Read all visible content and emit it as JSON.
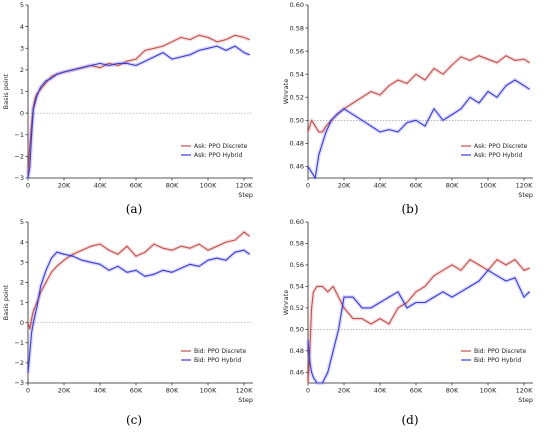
{
  "colors": {
    "discrete": "#c0504d",
    "hybrid": "#3b3bd6",
    "baseline": "#8a8a8a"
  },
  "chart_data": [
    {
      "type": "line",
      "caption": "(a)",
      "xlabel": "Step",
      "ylabel": "Basis point",
      "xlim": [
        0,
        125000
      ],
      "ylim": [
        -3,
        5
      ],
      "xticks": [
        0,
        20000,
        40000,
        60000,
        80000,
        100000,
        120000
      ],
      "xtick_labels": [
        "0",
        "20K",
        "40K",
        "60K",
        "80K",
        "100K",
        "120K"
      ],
      "yticks": [
        -3,
        -2,
        -1,
        0,
        1,
        2,
        3,
        4,
        5
      ],
      "ytick_labels": [
        "−3",
        "−2",
        "−1",
        "0",
        "1",
        "2",
        "3",
        "4",
        "5"
      ],
      "baseline": 0,
      "legend": "bottom-right",
      "series": [
        {
          "name": "Ask: PPO Discrete",
          "key": "discrete",
          "x": [
            0,
            1000,
            2000,
            3000,
            4000,
            5000,
            7000,
            10000,
            13000,
            16000,
            20000,
            25000,
            30000,
            35000,
            40000,
            45000,
            50000,
            55000,
            60000,
            65000,
            70000,
            75000,
            80000,
            85000,
            90000,
            95000,
            100000,
            105000,
            110000,
            115000,
            120000,
            123000
          ],
          "y": [
            -2.8,
            -1.5,
            -0.5,
            0.3,
            0.7,
            0.9,
            1.1,
            1.4,
            1.7,
            1.8,
            1.9,
            2.0,
            2.1,
            2.2,
            2.1,
            2.3,
            2.2,
            2.4,
            2.5,
            2.9,
            3.0,
            3.1,
            3.3,
            3.5,
            3.4,
            3.6,
            3.5,
            3.3,
            3.4,
            3.6,
            3.5,
            3.4
          ]
        },
        {
          "name": "Ask: PPO Hybrid",
          "key": "hybrid",
          "x": [
            0,
            1000,
            2000,
            3000,
            4000,
            5000,
            7000,
            10000,
            13000,
            16000,
            20000,
            25000,
            30000,
            35000,
            40000,
            45000,
            50000,
            55000,
            60000,
            65000,
            70000,
            75000,
            80000,
            85000,
            90000,
            95000,
            100000,
            105000,
            110000,
            115000,
            120000,
            123000
          ],
          "y": [
            -3.0,
            -2.5,
            -1.0,
            0.2,
            0.5,
            0.8,
            1.2,
            1.5,
            1.6,
            1.8,
            1.9,
            2.0,
            2.1,
            2.2,
            2.3,
            2.2,
            2.3,
            2.3,
            2.2,
            2.4,
            2.6,
            2.8,
            2.5,
            2.6,
            2.7,
            2.9,
            3.0,
            3.1,
            2.9,
            3.1,
            2.8,
            2.7
          ]
        }
      ]
    },
    {
      "type": "line",
      "caption": "(b)",
      "xlabel": "Step",
      "ylabel": "Winrate",
      "xlim": [
        0,
        125000
      ],
      "ylim": [
        0.45,
        0.6
      ],
      "xticks": [
        0,
        20000,
        40000,
        60000,
        80000,
        100000,
        120000
      ],
      "xtick_labels": [
        "0",
        "20K",
        "40K",
        "60K",
        "80K",
        "100K",
        "120K"
      ],
      "yticks": [
        0.46,
        0.48,
        0.5,
        0.52,
        0.54,
        0.56,
        0.58,
        0.6
      ],
      "ytick_labels": [
        "0.46",
        "0.48",
        "0.50",
        "0.52",
        "0.54",
        "0.56",
        "0.58",
        "0.60"
      ],
      "baseline": 0.5,
      "legend": "bottom-right",
      "series": [
        {
          "name": "Ask: PPO Discrete",
          "key": "discrete",
          "x": [
            0,
            2000,
            4000,
            6000,
            8000,
            10000,
            13000,
            16000,
            20000,
            25000,
            30000,
            35000,
            40000,
            45000,
            50000,
            55000,
            60000,
            65000,
            70000,
            75000,
            80000,
            85000,
            90000,
            95000,
            100000,
            105000,
            110000,
            115000,
            120000,
            123000
          ],
          "y": [
            0.49,
            0.5,
            0.495,
            0.49,
            0.49,
            0.495,
            0.5,
            0.505,
            0.51,
            0.515,
            0.52,
            0.525,
            0.522,
            0.53,
            0.535,
            0.532,
            0.54,
            0.535,
            0.545,
            0.54,
            0.548,
            0.555,
            0.552,
            0.556,
            0.553,
            0.55,
            0.556,
            0.552,
            0.553,
            0.55
          ]
        },
        {
          "name": "Ask: PPO Hybrid",
          "key": "hybrid",
          "x": [
            0,
            2000,
            4000,
            6000,
            8000,
            10000,
            13000,
            16000,
            20000,
            25000,
            30000,
            35000,
            40000,
            45000,
            50000,
            55000,
            60000,
            65000,
            70000,
            75000,
            80000,
            85000,
            90000,
            95000,
            100000,
            105000,
            110000,
            115000,
            120000,
            123000
          ],
          "y": [
            0.46,
            0.455,
            0.45,
            0.47,
            0.48,
            0.49,
            0.5,
            0.505,
            0.51,
            0.505,
            0.5,
            0.495,
            0.49,
            0.492,
            0.49,
            0.498,
            0.5,
            0.495,
            0.51,
            0.5,
            0.505,
            0.51,
            0.52,
            0.515,
            0.525,
            0.52,
            0.53,
            0.535,
            0.53,
            0.527
          ]
        }
      ]
    },
    {
      "type": "line",
      "caption": "(c)",
      "xlabel": "Step",
      "ylabel": "Basis point",
      "xlim": [
        0,
        125000
      ],
      "ylim": [
        -3,
        5
      ],
      "xticks": [
        0,
        20000,
        40000,
        60000,
        80000,
        100000,
        120000
      ],
      "xtick_labels": [
        "0",
        "20K",
        "40K",
        "60K",
        "80K",
        "100K",
        "120K"
      ],
      "yticks": [
        -3,
        -2,
        -1,
        0,
        1,
        2,
        3,
        4,
        5
      ],
      "ytick_labels": [
        "−3",
        "−2",
        "−1",
        "0",
        "1",
        "2",
        "3",
        "4",
        "5"
      ],
      "baseline": 0,
      "legend": "bottom-right",
      "series": [
        {
          "name": "Bid: PPO Discrete",
          "key": "discrete",
          "x": [
            0,
            1000,
            2000,
            3000,
            5000,
            7000,
            10000,
            13000,
            16000,
            20000,
            25000,
            30000,
            35000,
            40000,
            45000,
            50000,
            55000,
            60000,
            65000,
            70000,
            75000,
            80000,
            85000,
            90000,
            95000,
            100000,
            105000,
            110000,
            115000,
            120000,
            123000
          ],
          "y": [
            0.0,
            -0.3,
            0.2,
            0.6,
            1.0,
            1.5,
            2.0,
            2.5,
            2.8,
            3.1,
            3.4,
            3.6,
            3.8,
            3.9,
            3.6,
            3.4,
            3.8,
            3.3,
            3.5,
            3.9,
            3.7,
            3.6,
            3.8,
            3.7,
            3.9,
            3.6,
            3.8,
            4.0,
            4.1,
            4.5,
            4.3
          ]
        },
        {
          "name": "Bid: PPO Hybrid",
          "key": "hybrid",
          "x": [
            0,
            1000,
            2000,
            3000,
            5000,
            7000,
            10000,
            13000,
            16000,
            20000,
            25000,
            30000,
            35000,
            40000,
            45000,
            50000,
            55000,
            60000,
            65000,
            70000,
            75000,
            80000,
            85000,
            90000,
            95000,
            100000,
            105000,
            110000,
            115000,
            120000,
            123000
          ],
          "y": [
            -2.5,
            -1.5,
            -0.5,
            0.0,
            0.8,
            1.8,
            2.6,
            3.2,
            3.5,
            3.4,
            3.3,
            3.1,
            3.0,
            2.9,
            2.6,
            2.8,
            2.5,
            2.6,
            2.3,
            2.4,
            2.6,
            2.5,
            2.7,
            2.9,
            2.8,
            3.1,
            3.2,
            3.1,
            3.5,
            3.6,
            3.4
          ]
        }
      ]
    },
    {
      "type": "line",
      "caption": "(d)",
      "xlabel": "Step",
      "ylabel": "Winrate",
      "xlim": [
        0,
        125000
      ],
      "ylim": [
        0.45,
        0.6
      ],
      "xticks": [
        0,
        20000,
        40000,
        60000,
        80000,
        100000,
        120000
      ],
      "xtick_labels": [
        "0",
        "20K",
        "40K",
        "60K",
        "80K",
        "100K",
        "120K"
      ],
      "yticks": [
        0.46,
        0.48,
        0.5,
        0.52,
        0.54,
        0.56,
        0.58,
        0.6
      ],
      "ytick_labels": [
        "0.46",
        "0.48",
        "0.50",
        "0.52",
        "0.54",
        "0.56",
        "0.58",
        "0.60"
      ],
      "baseline": 0.5,
      "legend": "bottom-right",
      "series": [
        {
          "name": "Bid: PPO Discrete",
          "key": "discrete",
          "x": [
            0,
            1000,
            2000,
            3000,
            5000,
            8000,
            11000,
            14000,
            17000,
            20000,
            25000,
            30000,
            35000,
            40000,
            45000,
            50000,
            55000,
            60000,
            65000,
            70000,
            75000,
            80000,
            85000,
            90000,
            95000,
            100000,
            105000,
            110000,
            115000,
            120000,
            123000
          ],
          "y": [
            0.45,
            0.48,
            0.52,
            0.535,
            0.54,
            0.54,
            0.535,
            0.54,
            0.53,
            0.52,
            0.51,
            0.51,
            0.505,
            0.51,
            0.505,
            0.52,
            0.525,
            0.535,
            0.54,
            0.55,
            0.555,
            0.56,
            0.555,
            0.565,
            0.56,
            0.555,
            0.565,
            0.56,
            0.565,
            0.555,
            0.557
          ]
        },
        {
          "name": "Bid: PPO Hybrid",
          "key": "hybrid",
          "x": [
            0,
            1000,
            2000,
            3000,
            5000,
            8000,
            11000,
            14000,
            17000,
            20000,
            25000,
            30000,
            35000,
            40000,
            45000,
            50000,
            55000,
            60000,
            65000,
            70000,
            75000,
            80000,
            85000,
            90000,
            95000,
            100000,
            105000,
            110000,
            115000,
            120000,
            123000
          ],
          "y": [
            0.49,
            0.47,
            0.46,
            0.455,
            0.45,
            0.45,
            0.46,
            0.48,
            0.5,
            0.53,
            0.53,
            0.52,
            0.52,
            0.525,
            0.53,
            0.535,
            0.52,
            0.525,
            0.525,
            0.53,
            0.535,
            0.53,
            0.535,
            0.54,
            0.545,
            0.555,
            0.55,
            0.545,
            0.548,
            0.53,
            0.535
          ]
        }
      ]
    }
  ]
}
